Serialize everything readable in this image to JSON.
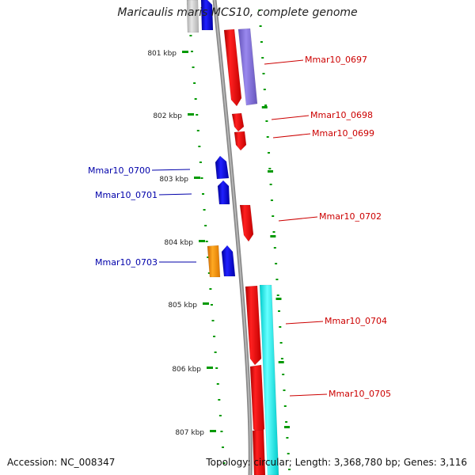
{
  "header": {
    "title": "Maricaulis maris MCS10, complete genome"
  },
  "footer": {
    "accession": "Accession: NC_008347",
    "topology": "Topology: circular; Length: 3,368,780 bp; Genes: 3,116"
  },
  "ruler": {
    "ticks": [
      {
        "label": "801 kbp"
      },
      {
        "label": "802 kbp"
      },
      {
        "label": "803 kbp"
      },
      {
        "label": "804 kbp"
      },
      {
        "label": "805 kbp"
      },
      {
        "label": "806 kbp"
      },
      {
        "label": "807 kbp"
      }
    ]
  },
  "genes": {
    "left_labels": [
      {
        "name": "Mmar10_0700"
      },
      {
        "name": "Mmar10_0701"
      },
      {
        "name": "Mmar10_0703"
      }
    ],
    "right_labels": [
      {
        "name": "Mmar10_0697"
      },
      {
        "name": "Mmar10_0698"
      },
      {
        "name": "Mmar10_0699"
      },
      {
        "name": "Mmar10_0702"
      },
      {
        "name": "Mmar10_0704"
      },
      {
        "name": "Mmar10_0705"
      }
    ]
  },
  "colors": {
    "forward_label": "#cc0000",
    "reverse_label": "#0000aa",
    "tick": "#009900",
    "backbone": "#8a8a8a",
    "red_gene": "#ff0000",
    "blue_gene": "#0000ff",
    "purple_gene": "#8877dd",
    "cyan_gene": "#00ffff",
    "orange_gene": "#ff9900",
    "grey_gene": "#c8c8c8"
  }
}
